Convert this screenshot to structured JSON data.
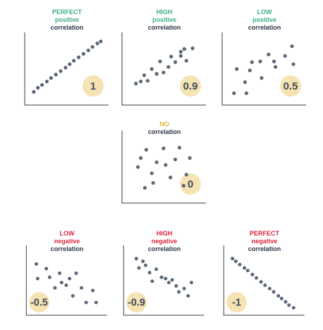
{
  "colors": {
    "positive": "#3fae86",
    "neutral": "#e0b53a",
    "negative": "#d6263f",
    "dark": "#2b3646",
    "dot": "#5b6677",
    "badge": "#f6e3b3",
    "axis": "#3a3a3a"
  },
  "chart_data": [
    {
      "type": "scatter",
      "title": [
        "PERFECT",
        "positive",
        "correlation"
      ],
      "badge": "1",
      "points": [
        [
          8,
          12
        ],
        [
          14,
          18
        ],
        [
          20,
          22
        ],
        [
          27,
          27
        ],
        [
          33,
          32
        ],
        [
          40,
          37
        ],
        [
          47,
          42
        ],
        [
          54,
          47
        ],
        [
          60,
          52
        ],
        [
          66,
          57
        ],
        [
          73,
          62
        ],
        [
          80,
          67
        ],
        [
          87,
          72
        ],
        [
          93,
          77
        ],
        [
          100,
          82
        ],
        [
          105,
          85
        ]
      ]
    },
    {
      "type": "scatter",
      "title": [
        "HIGH",
        "positive",
        "correlation"
      ],
      "badge": "0.9",
      "points": [
        [
          15,
          24
        ],
        [
          22,
          27
        ],
        [
          27,
          36
        ],
        [
          32,
          28
        ],
        [
          38,
          45
        ],
        [
          45,
          38
        ],
        [
          50,
          56
        ],
        [
          55,
          40
        ],
        [
          62,
          48
        ],
        [
          66,
          63
        ],
        [
          72,
          55
        ],
        [
          80,
          70
        ],
        [
          80,
          64
        ],
        [
          85,
          74
        ],
        [
          88,
          57
        ],
        [
          97,
          75
        ]
      ]
    },
    {
      "type": "scatter",
      "title": [
        "LOW",
        "positive",
        "correlation"
      ],
      "badge": "0.5",
      "points": [
        [
          12,
          10
        ],
        [
          16,
          45
        ],
        [
          28,
          26
        ],
        [
          30,
          10
        ],
        [
          35,
          43
        ],
        [
          38,
          55
        ],
        [
          50,
          56
        ],
        [
          52,
          32
        ],
        [
          62,
          66
        ],
        [
          70,
          56
        ],
        [
          72,
          48
        ],
        [
          86,
          64
        ],
        [
          96,
          78
        ],
        [
          98,
          52
        ]
      ]
    },
    {
      "type": "scatter",
      "title": [
        "NO",
        "correlation"
      ],
      "badge": "0",
      "points": [
        [
          18,
          45
        ],
        [
          22,
          58
        ],
        [
          28,
          15
        ],
        [
          30,
          70
        ],
        [
          38,
          36
        ],
        [
          40,
          22
        ],
        [
          45,
          52
        ],
        [
          55,
          72
        ],
        [
          58,
          48
        ],
        [
          65,
          30
        ],
        [
          72,
          56
        ],
        [
          78,
          73
        ],
        [
          84,
          18
        ],
        [
          88,
          34
        ],
        [
          93,
          58
        ]
      ]
    },
    {
      "type": "scatter",
      "title": [
        "LOW",
        "negative",
        "correlation"
      ],
      "badge": "-0.5",
      "points": [
        [
          10,
          70
        ],
        [
          12,
          48
        ],
        [
          25,
          63
        ],
        [
          30,
          50
        ],
        [
          38,
          34
        ],
        [
          45,
          56
        ],
        [
          48,
          42
        ],
        [
          55,
          38
        ],
        [
          60,
          48
        ],
        [
          65,
          22
        ],
        [
          70,
          56
        ],
        [
          78,
          34
        ],
        [
          85,
          12
        ],
        [
          95,
          30
        ],
        [
          100,
          12
        ]
      ]
    },
    {
      "type": "scatter",
      "title": [
        "HIGH",
        "negative",
        "correlation"
      ],
      "badge": "-0.9",
      "points": [
        [
          14,
          78
        ],
        [
          18,
          64
        ],
        [
          24,
          74
        ],
        [
          28,
          68
        ],
        [
          34,
          57
        ],
        [
          38,
          44
        ],
        [
          44,
          62
        ],
        [
          52,
          50
        ],
        [
          58,
          48
        ],
        [
          63,
          42
        ],
        [
          68,
          46
        ],
        [
          74,
          37
        ],
        [
          78,
          28
        ],
        [
          86,
          33
        ],
        [
          92,
          22
        ],
        [
          97,
          42
        ]
      ]
    },
    {
      "type": "scatter",
      "title": [
        "PERFECT",
        "negative",
        "correlation"
      ],
      "badge": "-1",
      "points": [
        [
          8,
          78
        ],
        [
          13,
          74
        ],
        [
          19,
          69
        ],
        [
          26,
          64
        ],
        [
          31,
          60
        ],
        [
          38,
          54
        ],
        [
          44,
          49
        ],
        [
          51,
          43
        ],
        [
          57,
          38
        ],
        [
          64,
          33
        ],
        [
          70,
          28
        ],
        [
          77,
          22
        ],
        [
          82,
          18
        ],
        [
          88,
          13
        ],
        [
          93,
          8
        ],
        [
          100,
          4
        ]
      ]
    }
  ]
}
